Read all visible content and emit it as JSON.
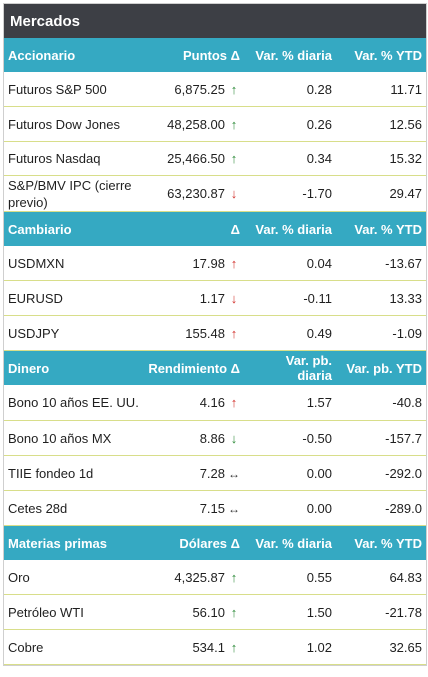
{
  "title": "Mercados",
  "colors": {
    "title_bg": "#3d3f45",
    "header_bg": "#35a9c2",
    "up": "#2e8b3a",
    "down": "#d2322d",
    "row_divider": "#d8de8a"
  },
  "accionario": {
    "headers": [
      "Accionario",
      "Puntos Δ",
      "Var. % diaria",
      "Var. % YTD"
    ],
    "rows": [
      {
        "name": "Futuros S&P 500",
        "value": "6,875.25",
        "dir": "up",
        "arrow": "↑",
        "daily": "0.28",
        "ytd": "11.71"
      },
      {
        "name": "Futuros Dow Jones",
        "value": "48,258.00",
        "dir": "up",
        "arrow": "↑",
        "daily": "0.26",
        "ytd": "12.56"
      },
      {
        "name": "Futuros Nasdaq",
        "value": "25,466.50",
        "dir": "up",
        "arrow": "↑",
        "daily": "0.34",
        "ytd": "15.32"
      },
      {
        "name": "S&P/BMV IPC (cierre previo)",
        "value": "63,230.87",
        "dir": "down",
        "arrow": "↓",
        "daily": "-1.70",
        "ytd": "29.47"
      }
    ]
  },
  "cambiario": {
    "headers": [
      "Cambiario",
      "Δ",
      "Var. % diaria",
      "Var. % YTD"
    ],
    "rows": [
      {
        "name": "USDMXN",
        "value": "17.98",
        "dir": "down",
        "arrow": "↑",
        "daily": "0.04",
        "ytd": "-13.67"
      },
      {
        "name": "EURUSD",
        "value": "1.17",
        "dir": "down",
        "arrow": "↓",
        "daily": "-0.11",
        "ytd": "13.33"
      },
      {
        "name": "USDJPY",
        "value": "155.48",
        "dir": "down",
        "arrow": "↑",
        "daily": "0.49",
        "ytd": "-1.09"
      }
    ]
  },
  "dinero": {
    "headers": [
      "Dinero",
      "Rendimiento Δ",
      "Var. pb. diaria",
      "Var. pb. YTD"
    ],
    "rows": [
      {
        "name": "Bono 10 años EE. UU.",
        "value": "4.16",
        "dir": "down",
        "arrow": "↑",
        "daily": "1.57",
        "ytd": "-40.8"
      },
      {
        "name": "Bono 10 años MX",
        "value": "8.86",
        "dir": "up",
        "arrow": "↓",
        "daily": "-0.50",
        "ytd": "-157.7"
      },
      {
        "name": "TIIE fondeo 1d",
        "value": "7.28",
        "dir": "flat",
        "arrow": "↔",
        "daily": "0.00",
        "ytd": "-292.0"
      },
      {
        "name": "Cetes 28d",
        "value": "7.15",
        "dir": "flat",
        "arrow": "↔",
        "daily": "0.00",
        "ytd": "-289.0"
      }
    ]
  },
  "materias": {
    "headers": [
      "Materias primas",
      "Dólares Δ",
      "Var. % diaria",
      "Var. % YTD"
    ],
    "rows": [
      {
        "name": "Oro",
        "value": "4,325.87",
        "dir": "up",
        "arrow": "↑",
        "daily": "0.55",
        "ytd": "64.83"
      },
      {
        "name": "Petróleo WTI",
        "value": "56.10",
        "dir": "up",
        "arrow": "↑",
        "daily": "1.50",
        "ytd": "-21.78"
      },
      {
        "name": "Cobre",
        "value": "534.1",
        "dir": "up",
        "arrow": "↑",
        "daily": "1.02",
        "ytd": "32.65"
      }
    ]
  }
}
